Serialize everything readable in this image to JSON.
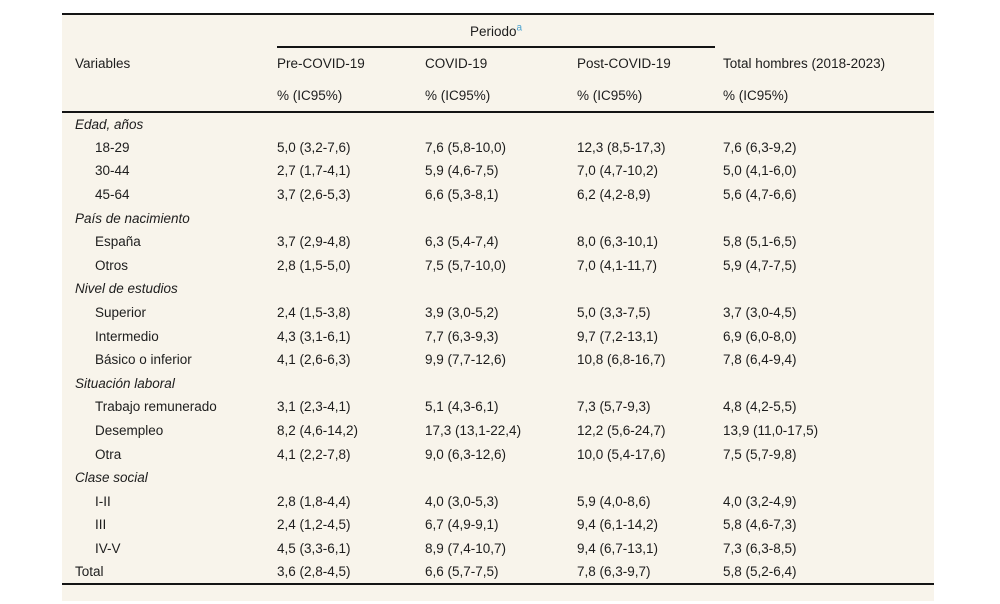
{
  "colors": {
    "panel_background": "#f8f4eb",
    "rule": "#141414",
    "text": "#1d1d1d",
    "footnote_marker_blue": "#4aa2cf"
  },
  "table": {
    "spanner": {
      "label": "Periodo",
      "superscript": "a"
    },
    "columns": {
      "variables": "Variables",
      "pre": "Pre-COVID-19",
      "covid": "COVID-19",
      "post": "Post-COVID-19",
      "total": "Total hombres (2018-2023)",
      "subheader": "% (IC95%)"
    },
    "rows": [
      {
        "type": "group",
        "label": "Edad, años",
        "cells": [
          "",
          "",
          "",
          ""
        ]
      },
      {
        "type": "item",
        "label": "18-29",
        "cells": [
          "5,0 (3,2-7,6)",
          "7,6 (5,8-10,0)",
          "12,3 (8,5-17,3)",
          "7,6 (6,3-9,2)"
        ]
      },
      {
        "type": "item",
        "label": "30-44",
        "cells": [
          "2,7 (1,7-4,1)",
          "5,9 (4,6-7,5)",
          "7,0 (4,7-10,2)",
          "5,0 (4,1-6,0)"
        ]
      },
      {
        "type": "item",
        "label": "45-64",
        "cells": [
          "3,7 (2,6-5,3)",
          "6,6 (5,3-8,1)",
          "6,2 (4,2-8,9)",
          "5,6 (4,7-6,6)"
        ]
      },
      {
        "type": "group",
        "label": "País de nacimiento",
        "cells": [
          "",
          "",
          "",
          ""
        ]
      },
      {
        "type": "item",
        "label": "España",
        "cells": [
          "3,7 (2,9-4,8)",
          "6,3 (5,4-7,4)",
          "8,0 (6,3-10,1)",
          "5,8 (5,1-6,5)"
        ]
      },
      {
        "type": "item",
        "label": "Otros",
        "cells": [
          "2,8 (1,5-5,0)",
          "7,5 (5,7-10,0)",
          "7,0 (4,1-11,7)",
          "5,9 (4,7-7,5)"
        ]
      },
      {
        "type": "group",
        "label": "Nivel de estudios",
        "cells": [
          "",
          "",
          "",
          ""
        ]
      },
      {
        "type": "item",
        "label": "Superior",
        "cells": [
          "2,4 (1,5-3,8)",
          "3,9 (3,0-5,2)",
          "5,0 (3,3-7,5)",
          "3,7 (3,0-4,5)"
        ]
      },
      {
        "type": "item",
        "label": "Intermedio",
        "cells": [
          "4,3 (3,1-6,1)",
          "7,7 (6,3-9,3)",
          "9,7 (7,2-13,1)",
          "6,9 (6,0-8,0)"
        ]
      },
      {
        "type": "item",
        "label": "Básico o inferior",
        "cells": [
          "4,1 (2,6-6,3)",
          "9,9 (7,7-12,6)",
          "10,8 (6,8-16,7)",
          "7,8 (6,4-9,4)"
        ]
      },
      {
        "type": "group",
        "label": "Situación laboral",
        "cells": [
          "",
          "",
          "",
          ""
        ]
      },
      {
        "type": "item",
        "label": "Trabajo remunerado",
        "cells": [
          "3,1 (2,3-4,1)",
          "5,1 (4,3-6,1)",
          "7,3 (5,7-9,3)",
          "4,8 (4,2-5,5)"
        ]
      },
      {
        "type": "item",
        "label": "Desempleo",
        "cells": [
          "8,2 (4,6-14,2)",
          "17,3 (13,1-22,4)",
          "12,2 (5,6-24,7)",
          "13,9 (11,0-17,5)"
        ]
      },
      {
        "type": "item",
        "label": "Otra",
        "cells": [
          "4,1 (2,2-7,8)",
          "9,0 (6,3-12,6)",
          "10,0 (5,4-17,6)",
          "7,5 (5,7-9,8)"
        ]
      },
      {
        "type": "group",
        "label": "Clase social",
        "cells": [
          "",
          "",
          "",
          ""
        ]
      },
      {
        "type": "item",
        "label": "I-II",
        "cells": [
          "2,8 (1,8-4,4)",
          "4,0 (3,0-5,3)",
          "5,9 (4,0-8,6)",
          "4,0 (3,2-4,9)"
        ]
      },
      {
        "type": "item",
        "label": "III",
        "cells": [
          "2,4 (1,2-4,5)",
          "6,7 (4,9-9,1)",
          "9,4 (6,1-14,2)",
          "5,8 (4,6-7,3)"
        ]
      },
      {
        "type": "item",
        "label": "IV-V",
        "cells": [
          "4,5 (3,3-6,1)",
          "8,9 (7,4-10,7)",
          "9,4 (6,7-13,1)",
          "7,3 (6,3-8,5)"
        ]
      },
      {
        "type": "total",
        "label": "Total",
        "cells": [
          "3,6 (2,8-4,5)",
          "6,6 (5,7-7,5)",
          "7,8 (6,3-9,7)",
          "5,8 (5,2-6,4)"
        ]
      }
    ]
  }
}
